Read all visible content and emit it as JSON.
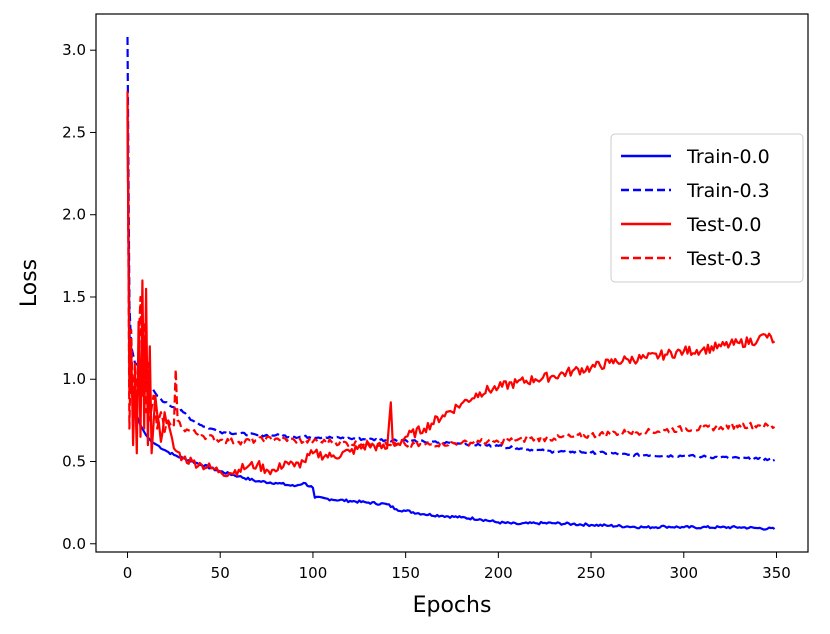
{
  "chart_data": {
    "type": "line",
    "title": "",
    "xlabel": "Epochs",
    "ylabel": "Loss",
    "xlim": [
      -17,
      367
    ],
    "ylim": [
      -0.05,
      3.22
    ],
    "xticks": [
      0,
      50,
      100,
      150,
      200,
      250,
      300,
      350
    ],
    "xtick_labels": [
      "0",
      "50",
      "100",
      "150",
      "200",
      "250",
      "300",
      "350"
    ],
    "yticks": [
      0.0,
      0.5,
      1.0,
      1.5,
      2.0,
      2.5,
      3.0
    ],
    "ytick_labels": [
      "0.0",
      "0.5",
      "1.0",
      "1.5",
      "2.0",
      "2.5",
      "3.0"
    ],
    "grid": false,
    "legend_position": "center-right",
    "series": [
      {
        "name": "Train-0.0",
        "color": "#0000ff",
        "linestyle": "solid",
        "x": [
          0,
          1,
          2,
          3,
          5,
          7,
          10,
          13,
          16,
          20,
          25,
          30,
          40,
          50,
          60,
          70,
          80,
          90,
          95,
          100,
          101,
          110,
          120,
          130,
          140,
          145,
          150,
          160,
          170,
          180,
          190,
          200,
          210,
          220,
          230,
          240,
          250,
          260,
          270,
          280,
          290,
          300,
          310,
          320,
          330,
          340,
          349
        ],
        "y": [
          2.6,
          1.3,
          1.0,
          0.85,
          0.78,
          0.72,
          0.66,
          0.62,
          0.6,
          0.57,
          0.54,
          0.52,
          0.48,
          0.44,
          0.41,
          0.38,
          0.37,
          0.35,
          0.37,
          0.34,
          0.28,
          0.27,
          0.26,
          0.25,
          0.24,
          0.21,
          0.2,
          0.18,
          0.17,
          0.16,
          0.15,
          0.13,
          0.12,
          0.125,
          0.125,
          0.12,
          0.115,
          0.11,
          0.105,
          0.1,
          0.105,
          0.1,
          0.1,
          0.1,
          0.1,
          0.095,
          0.09
        ]
      },
      {
        "name": "Train-0.3",
        "color": "#0000ff",
        "linestyle": "dashed",
        "x": [
          0,
          1,
          2,
          4,
          6,
          8,
          10,
          13,
          16,
          20,
          25,
          30,
          35,
          40,
          45,
          50,
          60,
          70,
          80,
          90,
          100,
          110,
          120,
          130,
          140,
          150,
          160,
          170,
          180,
          190,
          200,
          210,
          220,
          230,
          240,
          250,
          260,
          270,
          280,
          290,
          300,
          310,
          320,
          330,
          340,
          349
        ],
        "y": [
          3.08,
          1.45,
          1.2,
          1.1,
          1.08,
          1.0,
          0.98,
          0.95,
          0.9,
          0.86,
          0.83,
          0.8,
          0.75,
          0.72,
          0.7,
          0.68,
          0.67,
          0.66,
          0.66,
          0.65,
          0.65,
          0.645,
          0.64,
          0.635,
          0.63,
          0.63,
          0.62,
          0.615,
          0.61,
          0.6,
          0.595,
          0.58,
          0.57,
          0.56,
          0.56,
          0.555,
          0.55,
          0.54,
          0.54,
          0.535,
          0.535,
          0.53,
          0.525,
          0.52,
          0.515,
          0.51
        ]
      },
      {
        "name": "Test-0.0",
        "color": "#ff0000",
        "linestyle": "solid",
        "x": [
          0,
          1,
          2,
          3,
          4,
          5,
          6,
          7,
          8,
          9,
          10,
          11,
          12,
          13,
          15,
          18,
          20,
          25,
          30,
          35,
          40,
          45,
          50,
          55,
          60,
          65,
          70,
          75,
          80,
          85,
          90,
          95,
          100,
          110,
          120,
          130,
          140,
          142,
          143,
          145,
          150,
          160,
          170,
          180,
          190,
          200,
          210,
          220,
          230,
          240,
          250,
          260,
          270,
          280,
          290,
          300,
          310,
          320,
          330,
          340,
          344,
          349
        ],
        "y": [
          2.7,
          0.9,
          1.2,
          0.6,
          1.05,
          0.55,
          1.35,
          0.65,
          1.6,
          0.7,
          1.55,
          0.6,
          1.2,
          0.55,
          0.9,
          0.62,
          0.8,
          0.58,
          0.52,
          0.5,
          0.48,
          0.46,
          0.44,
          0.43,
          0.45,
          0.47,
          0.48,
          0.45,
          0.44,
          0.5,
          0.47,
          0.5,
          0.55,
          0.53,
          0.56,
          0.6,
          0.58,
          0.86,
          0.62,
          0.6,
          0.65,
          0.7,
          0.78,
          0.85,
          0.92,
          0.95,
          0.98,
          1.0,
          1.02,
          1.05,
          1.07,
          1.1,
          1.12,
          1.13,
          1.15,
          1.17,
          1.18,
          1.2,
          1.22,
          1.24,
          1.27,
          1.23
        ]
      },
      {
        "name": "Test-0.3",
        "color": "#ff0000",
        "linestyle": "dashed",
        "x": [
          0,
          1,
          2,
          3,
          4,
          5,
          6,
          7,
          8,
          9,
          10,
          11,
          12,
          14,
          16,
          18,
          20,
          22,
          25,
          26,
          27,
          30,
          35,
          40,
          50,
          60,
          70,
          80,
          90,
          100,
          110,
          120,
          130,
          140,
          150,
          160,
          170,
          180,
          190,
          200,
          210,
          220,
          230,
          240,
          250,
          260,
          270,
          280,
          290,
          300,
          310,
          320,
          330,
          340,
          349
        ],
        "y": [
          2.75,
          0.7,
          1.3,
          0.75,
          1.1,
          0.8,
          1.2,
          1.5,
          0.9,
          1.35,
          0.8,
          1.1,
          0.75,
          0.9,
          0.7,
          0.8,
          0.68,
          0.75,
          0.72,
          1.06,
          0.75,
          0.7,
          0.68,
          0.66,
          0.63,
          0.62,
          0.63,
          0.64,
          0.63,
          0.62,
          0.62,
          0.61,
          0.61,
          0.6,
          0.6,
          0.6,
          0.61,
          0.61,
          0.62,
          0.62,
          0.63,
          0.64,
          0.64,
          0.65,
          0.66,
          0.67,
          0.68,
          0.68,
          0.69,
          0.7,
          0.7,
          0.71,
          0.72,
          0.72,
          0.71
        ]
      }
    ]
  }
}
